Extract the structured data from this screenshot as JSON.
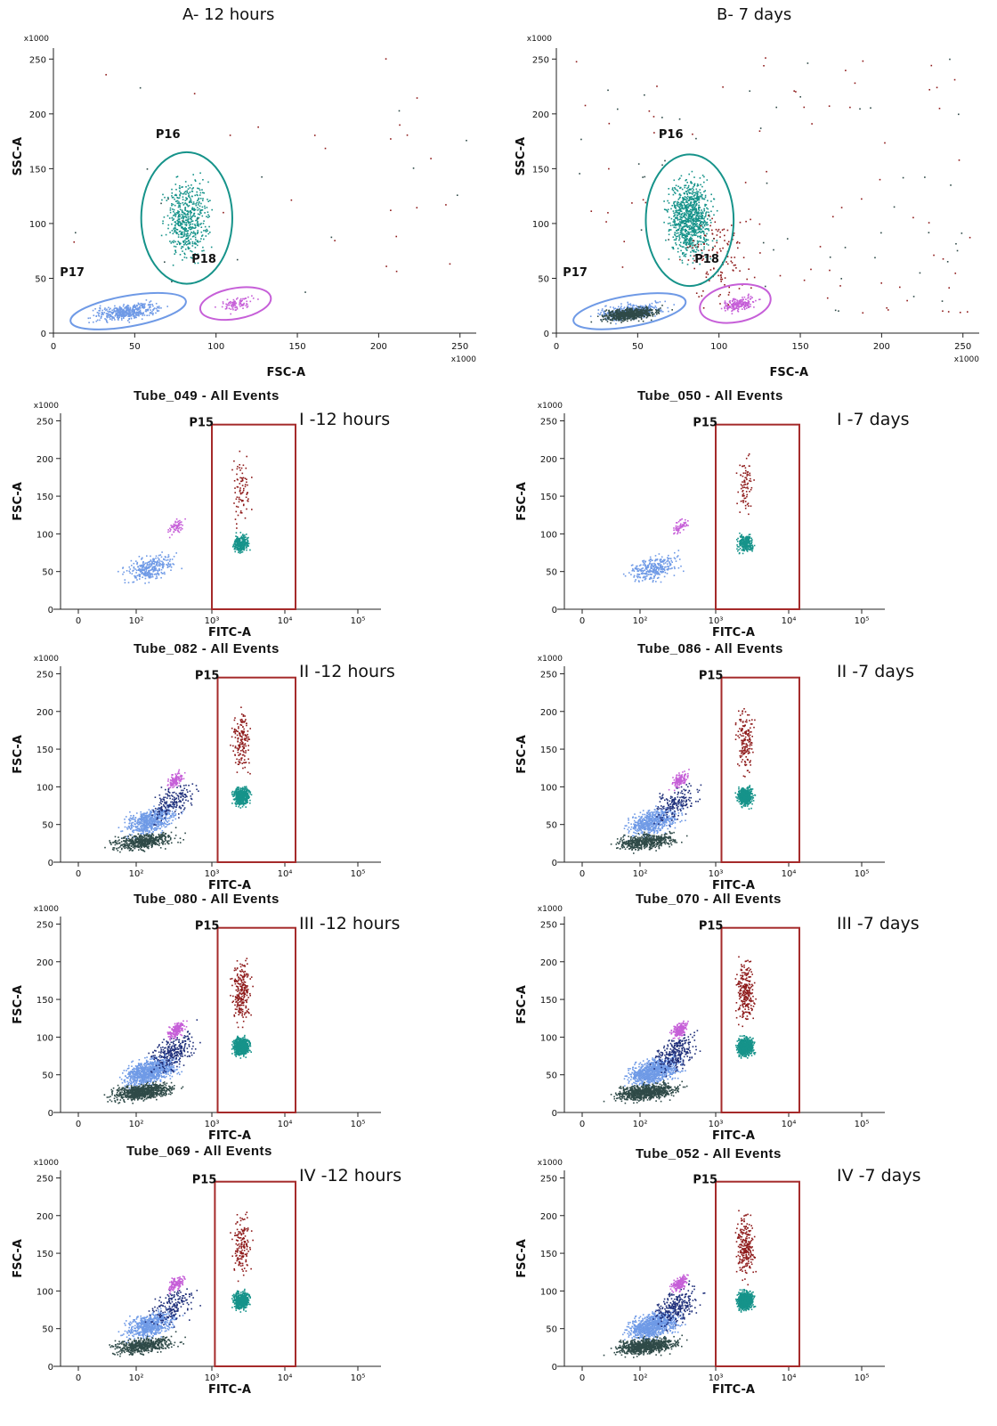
{
  "headers": {
    "left": "A- 12 hours",
    "right": "B- 7 days"
  },
  "colors": {
    "teal": "#16938a",
    "blue": "#6f9ae6",
    "magenta": "#c65fd8",
    "darkred": "#8e1a1a",
    "navy": "#1f2f7a",
    "darkgray": "#2f4a48",
    "gate": "#a52a2a"
  },
  "chart_data": [
    {
      "type": "scatter",
      "title": "",
      "xlabel": "FSC-A",
      "ylabel": "SSC-A",
      "multiplier": "x1000",
      "xlim": [
        0,
        260
      ],
      "ylim": [
        0,
        260
      ],
      "xticks": [
        "0",
        "50",
        "100",
        "150",
        "200",
        "250"
      ],
      "yticks": [
        "0",
        "50",
        "100",
        "150",
        "200",
        "250"
      ],
      "gates": [
        {
          "name": "P16",
          "shape": "ellipse",
          "color": "teal",
          "center": [
            82,
            105
          ],
          "radii": [
            28,
            60
          ]
        },
        {
          "name": "P17",
          "shape": "ellipse",
          "color": "blue",
          "center": [
            46,
            20
          ],
          "radii": [
            36,
            14
          ]
        },
        {
          "name": "P18",
          "shape": "ellipse",
          "color": "magenta",
          "center": [
            112,
            27
          ],
          "radii": [
            22,
            14
          ]
        }
      ],
      "labels": [
        "P16",
        "P17",
        "P18"
      ]
    },
    {
      "type": "scatter",
      "title": "",
      "xlabel": "FSC-A",
      "ylabel": "SSC-A",
      "multiplier": "x1000",
      "xlim": [
        0,
        260
      ],
      "ylim": [
        0,
        260
      ],
      "xticks": [
        "0",
        "50",
        "100",
        "150",
        "200",
        "250"
      ],
      "yticks": [
        "0",
        "50",
        "100",
        "150",
        "200",
        "250"
      ],
      "gates": [
        {
          "name": "P16",
          "shape": "ellipse",
          "color": "teal",
          "center": [
            82,
            103
          ],
          "radii": [
            27,
            60
          ]
        },
        {
          "name": "P17",
          "shape": "ellipse",
          "color": "blue",
          "center": [
            45,
            20
          ],
          "radii": [
            35,
            14
          ]
        },
        {
          "name": "P18",
          "shape": "ellipse",
          "color": "magenta",
          "center": [
            110,
            27
          ],
          "radii": [
            22,
            17
          ]
        }
      ],
      "labels": [
        "P16",
        "P17",
        "P18"
      ]
    },
    {
      "type": "scatter",
      "title": "Tube_049 - All Events",
      "condition": "I -12 hours",
      "xlabel": "FITC-A",
      "ylabel": "FSC-A",
      "multiplier": "x1000",
      "gate": "P15",
      "gate_x": [
        1000,
        14000
      ],
      "ylim": [
        0,
        260
      ]
    },
    {
      "type": "scatter",
      "title": "Tube_050 - All Events",
      "condition": "I -7 days",
      "xlabel": "FITC-A",
      "ylabel": "FSC-A",
      "multiplier": "x1000",
      "gate": "P15",
      "gate_x": [
        1000,
        14000
      ],
      "ylim": [
        0,
        260
      ]
    },
    {
      "type": "scatter",
      "title": "Tube_082 - All Events",
      "condition": "II -12 hours",
      "xlabel": "FITC-A",
      "ylabel": "FSC-A",
      "multiplier": "x1000",
      "gate": "P15",
      "gate_x": [
        1200,
        14000
      ],
      "ylim": [
        0,
        260
      ]
    },
    {
      "type": "scatter",
      "title": "Tube_086 - All Events",
      "condition": "II -7 days",
      "xlabel": "FITC-A",
      "ylabel": "FSC-A",
      "multiplier": "x1000",
      "gate": "P15",
      "gate_x": [
        1200,
        14000
      ],
      "ylim": [
        0,
        260
      ]
    },
    {
      "type": "scatter",
      "title": "Tube_080 - All Events",
      "condition": "III -12 hours",
      "xlabel": "FITC-A",
      "ylabel": "FSC-A",
      "multiplier": "x1000",
      "gate": "P15",
      "gate_x": [
        1200,
        14000
      ],
      "ylim": [
        0,
        260
      ]
    },
    {
      "type": "scatter",
      "title": "Tube_070 - All Events",
      "condition": "III -7 days",
      "xlabel": "FITC-A",
      "ylabel": "FSC-A",
      "multiplier": "x1000",
      "gate": "P15",
      "gate_x": [
        1200,
        14000
      ],
      "ylim": [
        0,
        260
      ]
    },
    {
      "type": "scatter",
      "title": "Tube_069 - All Events",
      "condition": "IV -12 hours",
      "xlabel": "FITC-A",
      "ylabel": "FSC-A",
      "multiplier": "x1000",
      "gate": "P15",
      "gate_x": [
        1100,
        14000
      ],
      "ylim": [
        0,
        260
      ]
    },
    {
      "type": "scatter",
      "title": "Tube_052 - All Events",
      "condition": "IV -7 days",
      "xlabel": "FITC-A",
      "ylabel": "FSC-A",
      "multiplier": "x1000",
      "gate": "P15",
      "gate_x": [
        1000,
        14000
      ],
      "ylim": [
        0,
        260
      ]
    }
  ],
  "fitc_ticks": [
    "0",
    "10²",
    "10³",
    "10⁴",
    "10⁵"
  ],
  "fsc_ticks": [
    "0",
    "50",
    "100",
    "150",
    "200",
    "250"
  ]
}
